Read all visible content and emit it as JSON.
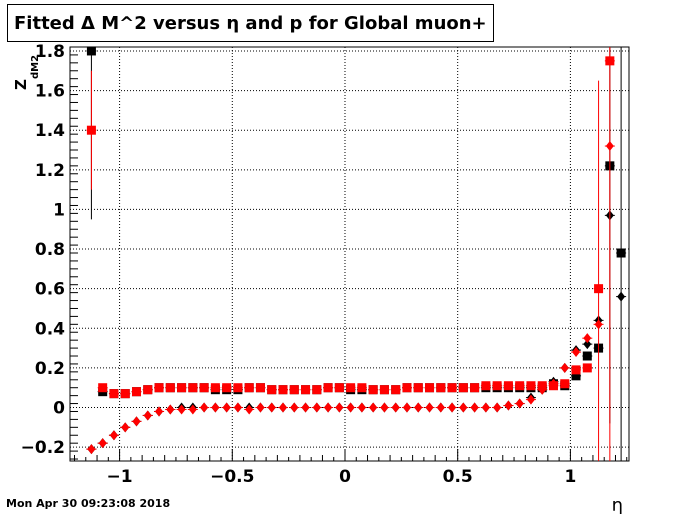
{
  "chart_data": {
    "type": "scatter",
    "title": "Fitted Δ M^2 versus η and p for Global muon+",
    "xlabel": "η",
    "ylabel": "Z",
    "ylabel_sub": "dM2",
    "xlim": [
      -1.22,
      1.26
    ],
    "ylim": [
      -0.27,
      1.82
    ],
    "xticks": [
      -1,
      -0.5,
      0,
      0.5,
      1
    ],
    "xtick_labels": [
      "−1",
      "−0.5",
      "0",
      "0.5",
      "1"
    ],
    "yticks": [
      -0.2,
      0,
      0.2,
      0.4,
      0.6,
      0.8,
      1,
      1.2,
      1.4,
      1.6,
      1.8
    ],
    "ytick_labels": [
      "−0.2",
      "0",
      "0.2",
      "0.4",
      "0.6",
      "0.8",
      "1",
      "1.2",
      "1.4",
      "1.6",
      "1.8"
    ],
    "grid": true,
    "series": [
      {
        "color": "#000000",
        "marker": "square",
        "x": [
          -1.125,
          -1.075,
          -1.025,
          -0.975,
          -0.925,
          -0.875,
          -0.825,
          -0.775,
          -0.725,
          -0.675,
          -0.625,
          -0.575,
          -0.525,
          -0.475,
          -0.425,
          -0.375,
          -0.325,
          -0.275,
          -0.225,
          -0.175,
          -0.125,
          -0.075,
          -0.025,
          0.025,
          0.075,
          0.125,
          0.175,
          0.225,
          0.275,
          0.325,
          0.375,
          0.425,
          0.475,
          0.525,
          0.575,
          0.625,
          0.675,
          0.725,
          0.775,
          0.825,
          0.875,
          0.925,
          0.975,
          1.025,
          1.075,
          1.125,
          1.175,
          1.225
        ],
        "y": [
          1.8,
          0.08,
          0.07,
          0.07,
          0.08,
          0.09,
          0.1,
          0.1,
          0.1,
          0.1,
          0.1,
          0.09,
          0.09,
          0.09,
          0.1,
          0.1,
          0.09,
          0.09,
          0.09,
          0.09,
          0.09,
          0.1,
          0.1,
          0.09,
          0.09,
          0.09,
          0.09,
          0.09,
          0.1,
          0.1,
          0.1,
          0.1,
          0.1,
          0.1,
          0.1,
          0.1,
          0.1,
          0.1,
          0.1,
          0.1,
          0.1,
          0.12,
          0.11,
          0.16,
          0.26,
          0.3,
          1.22,
          0.78
        ],
        "yerr": [
          0.85,
          0,
          0,
          0,
          0,
          0,
          0,
          0,
          0,
          0,
          0,
          0,
          0,
          0,
          0,
          0,
          0,
          0,
          0,
          0,
          0,
          0,
          0,
          0,
          0,
          0,
          0,
          0,
          0,
          0,
          0,
          0,
          0,
          0,
          0,
          0,
          0,
          0,
          0,
          0,
          0,
          0,
          0,
          0,
          0,
          0,
          1.3,
          1.05
        ]
      },
      {
        "color": "#000000",
        "marker": "diamond",
        "x": [
          -1.125,
          -1.075,
          -1.025,
          -0.975,
          -0.925,
          -0.875,
          -0.825,
          -0.775,
          -0.725,
          -0.675,
          -0.625,
          -0.575,
          -0.525,
          -0.475,
          -0.425,
          -0.375,
          -0.325,
          -0.275,
          -0.225,
          -0.175,
          -0.125,
          -0.075,
          -0.025,
          0.025,
          0.075,
          0.125,
          0.175,
          0.225,
          0.275,
          0.325,
          0.375,
          0.425,
          0.475,
          0.525,
          0.575,
          0.625,
          0.675,
          0.725,
          0.775,
          0.825,
          0.875,
          0.925,
          0.975,
          1.025,
          1.075,
          1.125,
          1.175,
          1.225
        ],
        "y": [
          -0.21,
          -0.18,
          -0.14,
          -0.1,
          -0.07,
          -0.04,
          -0.02,
          -0.01,
          0.0,
          0.0,
          0.0,
          0.0,
          0.0,
          0.0,
          0.0,
          0.0,
          0.0,
          0.0,
          0.0,
          0.0,
          0.0,
          0.0,
          0.0,
          0.0,
          0.0,
          0.0,
          0.0,
          0.0,
          0.0,
          0.0,
          0.0,
          0.0,
          0.0,
          0.0,
          0.0,
          0.0,
          0.0,
          0.01,
          0.02,
          0.05,
          0.09,
          0.13,
          0.2,
          0.29,
          0.32,
          0.44,
          0.97,
          0.56
        ],
        "yerr": [
          0,
          0,
          0,
          0,
          0,
          0,
          0,
          0,
          0,
          0,
          0,
          0,
          0,
          0,
          0,
          0,
          0,
          0,
          0,
          0,
          0,
          0,
          0,
          0,
          0,
          0,
          0,
          0,
          0,
          0,
          0,
          0,
          0,
          0,
          0,
          0,
          0,
          0,
          0,
          0,
          0,
          0,
          0,
          0,
          0,
          0,
          0,
          0
        ]
      },
      {
        "color": "#ff0000",
        "marker": "square",
        "x": [
          -1.125,
          -1.075,
          -1.025,
          -0.975,
          -0.925,
          -0.875,
          -0.825,
          -0.775,
          -0.725,
          -0.675,
          -0.625,
          -0.575,
          -0.525,
          -0.475,
          -0.425,
          -0.375,
          -0.325,
          -0.275,
          -0.225,
          -0.175,
          -0.125,
          -0.075,
          -0.025,
          0.025,
          0.075,
          0.125,
          0.175,
          0.225,
          0.275,
          0.325,
          0.375,
          0.425,
          0.475,
          0.525,
          0.575,
          0.625,
          0.675,
          0.725,
          0.775,
          0.825,
          0.875,
          0.925,
          0.975,
          1.025,
          1.075,
          1.125,
          1.175
        ],
        "y": [
          1.4,
          0.1,
          0.07,
          0.07,
          0.08,
          0.09,
          0.1,
          0.1,
          0.1,
          0.1,
          0.1,
          0.1,
          0.1,
          0.1,
          0.1,
          0.1,
          0.09,
          0.09,
          0.09,
          0.09,
          0.09,
          0.1,
          0.1,
          0.1,
          0.1,
          0.09,
          0.09,
          0.09,
          0.1,
          0.1,
          0.1,
          0.1,
          0.1,
          0.1,
          0.1,
          0.11,
          0.11,
          0.11,
          0.11,
          0.11,
          0.11,
          0.11,
          0.12,
          0.19,
          0.2,
          0.6,
          1.75
        ],
        "yerr": [
          0.3,
          0,
          0,
          0,
          0,
          0,
          0,
          0,
          0,
          0,
          0,
          0,
          0,
          0,
          0,
          0,
          0,
          0,
          0,
          0,
          0,
          0,
          0,
          0,
          0,
          0,
          0,
          0,
          0,
          0,
          0,
          0,
          0,
          0,
          0,
          0,
          0,
          0,
          0,
          0,
          0,
          0,
          0,
          0,
          0,
          1.05,
          2.1
        ]
      },
      {
        "color": "#ff0000",
        "marker": "diamond",
        "x": [
          -1.125,
          -1.075,
          -1.025,
          -0.975,
          -0.925,
          -0.875,
          -0.825,
          -0.775,
          -0.725,
          -0.675,
          -0.625,
          -0.575,
          -0.525,
          -0.475,
          -0.425,
          -0.375,
          -0.325,
          -0.275,
          -0.225,
          -0.175,
          -0.125,
          -0.075,
          -0.025,
          0.025,
          0.075,
          0.125,
          0.175,
          0.225,
          0.275,
          0.325,
          0.375,
          0.425,
          0.475,
          0.525,
          0.575,
          0.625,
          0.675,
          0.725,
          0.775,
          0.825,
          0.875,
          0.925,
          0.975,
          1.025,
          1.075,
          1.125,
          1.175
        ],
        "y": [
          -0.21,
          -0.18,
          -0.14,
          -0.1,
          -0.07,
          -0.04,
          -0.02,
          -0.01,
          -0.01,
          -0.01,
          0.0,
          0.0,
          0.0,
          0.0,
          -0.01,
          0.0,
          0.0,
          0.0,
          0.0,
          0.0,
          0.0,
          0.0,
          0.0,
          0.0,
          0.0,
          0.0,
          0.0,
          0.0,
          0.0,
          0.0,
          0.0,
          0.0,
          0.0,
          0.0,
          0.0,
          0.0,
          0.0,
          0.01,
          0.02,
          0.04,
          0.09,
          0.12,
          0.2,
          0.28,
          0.35,
          0.42,
          1.32
        ],
        "yerr": [
          0,
          0,
          0,
          0,
          0,
          0,
          0,
          0,
          0,
          0,
          0,
          0,
          0,
          0,
          0,
          0,
          0,
          0,
          0,
          0,
          0,
          0,
          0,
          0,
          0,
          0,
          0,
          0,
          0,
          0,
          0,
          0,
          0,
          0,
          0,
          0,
          0,
          0,
          0,
          0,
          0,
          0,
          0,
          0,
          0,
          0,
          0
        ]
      }
    ]
  },
  "footer": {
    "datestamp": "Mon Apr 30 09:23:08 2018"
  }
}
